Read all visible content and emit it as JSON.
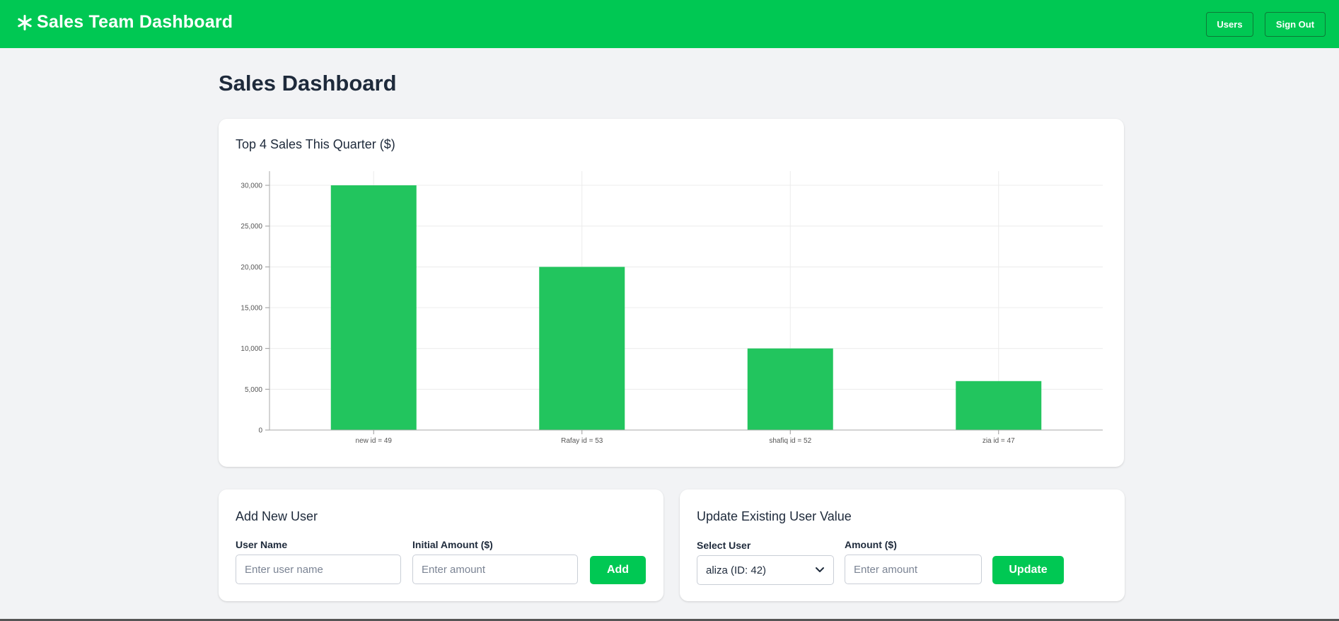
{
  "header": {
    "title": "Sales Team Dashboard",
    "users_label": "Users",
    "signout_label": "Sign Out",
    "icon": "asterisk-logo-icon"
  },
  "page": {
    "title": "Sales Dashboard"
  },
  "colors": {
    "brand": "#00c853",
    "bar": "#22c55e",
    "text": "#1e2a3b"
  },
  "chart_data": {
    "type": "bar",
    "title": "Top 4 Sales This Quarter ($)",
    "categories": [
      "new id = 49",
      "Rafay id = 53",
      "shafiq id = 52",
      "zia id = 47"
    ],
    "values": [
      30000,
      20000,
      10000,
      6000
    ],
    "ylim": [
      0,
      30000
    ],
    "yticks": [
      "0",
      "5,000",
      "10,000",
      "15,000",
      "20,000",
      "25,000",
      "30,000"
    ],
    "grid": true,
    "legend": "none"
  },
  "add_user": {
    "title": "Add New User",
    "name_label": "User Name",
    "name_placeholder": "Enter user name",
    "amount_label": "Initial Amount ($)",
    "amount_placeholder": "Enter amount",
    "button_label": "Add"
  },
  "update_user": {
    "title": "Update Existing User Value",
    "select_label": "Select User",
    "selected_user": "aliza (ID: 42)",
    "amount_label": "Amount ($)",
    "amount_placeholder": "Enter amount",
    "button_label": "Update"
  }
}
